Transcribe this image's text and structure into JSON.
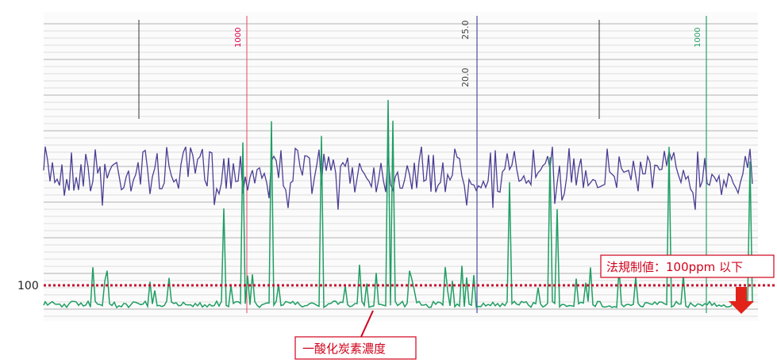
{
  "annotations": {
    "reference_label": "100",
    "limit_label": "法規制値：100ppm 以下",
    "trace_label": "一酸化炭素濃度"
  },
  "paper_labels": {
    "scale_top": "25.0",
    "scale_mid": "20.0",
    "red_scale": "1000",
    "green_scale": "1000"
  }
}
